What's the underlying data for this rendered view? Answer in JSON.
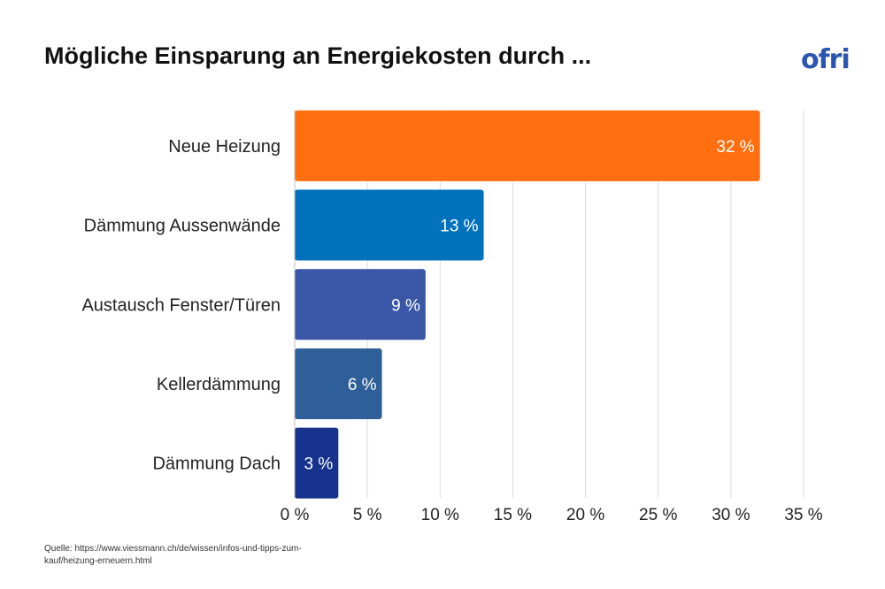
{
  "title": "Mögliche Einsparung an Energiekosten durch ...",
  "logo": "ofri",
  "source": "Quelle: https://www.viessmann.ch/de/wissen/infos-und-tipps-zum-kauf/heizung-erneuern.html",
  "chart_data": {
    "type": "bar",
    "orientation": "horizontal",
    "categories": [
      "Neue Heizung",
      "Dämmung Aussenwände",
      "Austausch Fenster/Türen",
      "Kellerdämmung",
      "Dämmung Dach"
    ],
    "values": [
      32,
      13,
      9,
      6,
      3
    ],
    "data_labels": [
      "32 %",
      "13 %",
      "9 %",
      "6 %",
      "3 %"
    ],
    "colors": [
      "#ff6f0f",
      "#0072bc",
      "#3a57a7",
      "#2f5f99",
      "#17328c"
    ],
    "xlim": [
      0,
      35
    ],
    "x_ticks": [
      0,
      5,
      10,
      15,
      20,
      25,
      30,
      35
    ],
    "x_tick_labels": [
      "0 %",
      "5 %",
      "10 %",
      "15 %",
      "20 %",
      "25 %",
      "30 %",
      "35 %"
    ],
    "grid": "vertical",
    "title": "Mögliche Einsparung an Energiekosten durch ..."
  }
}
